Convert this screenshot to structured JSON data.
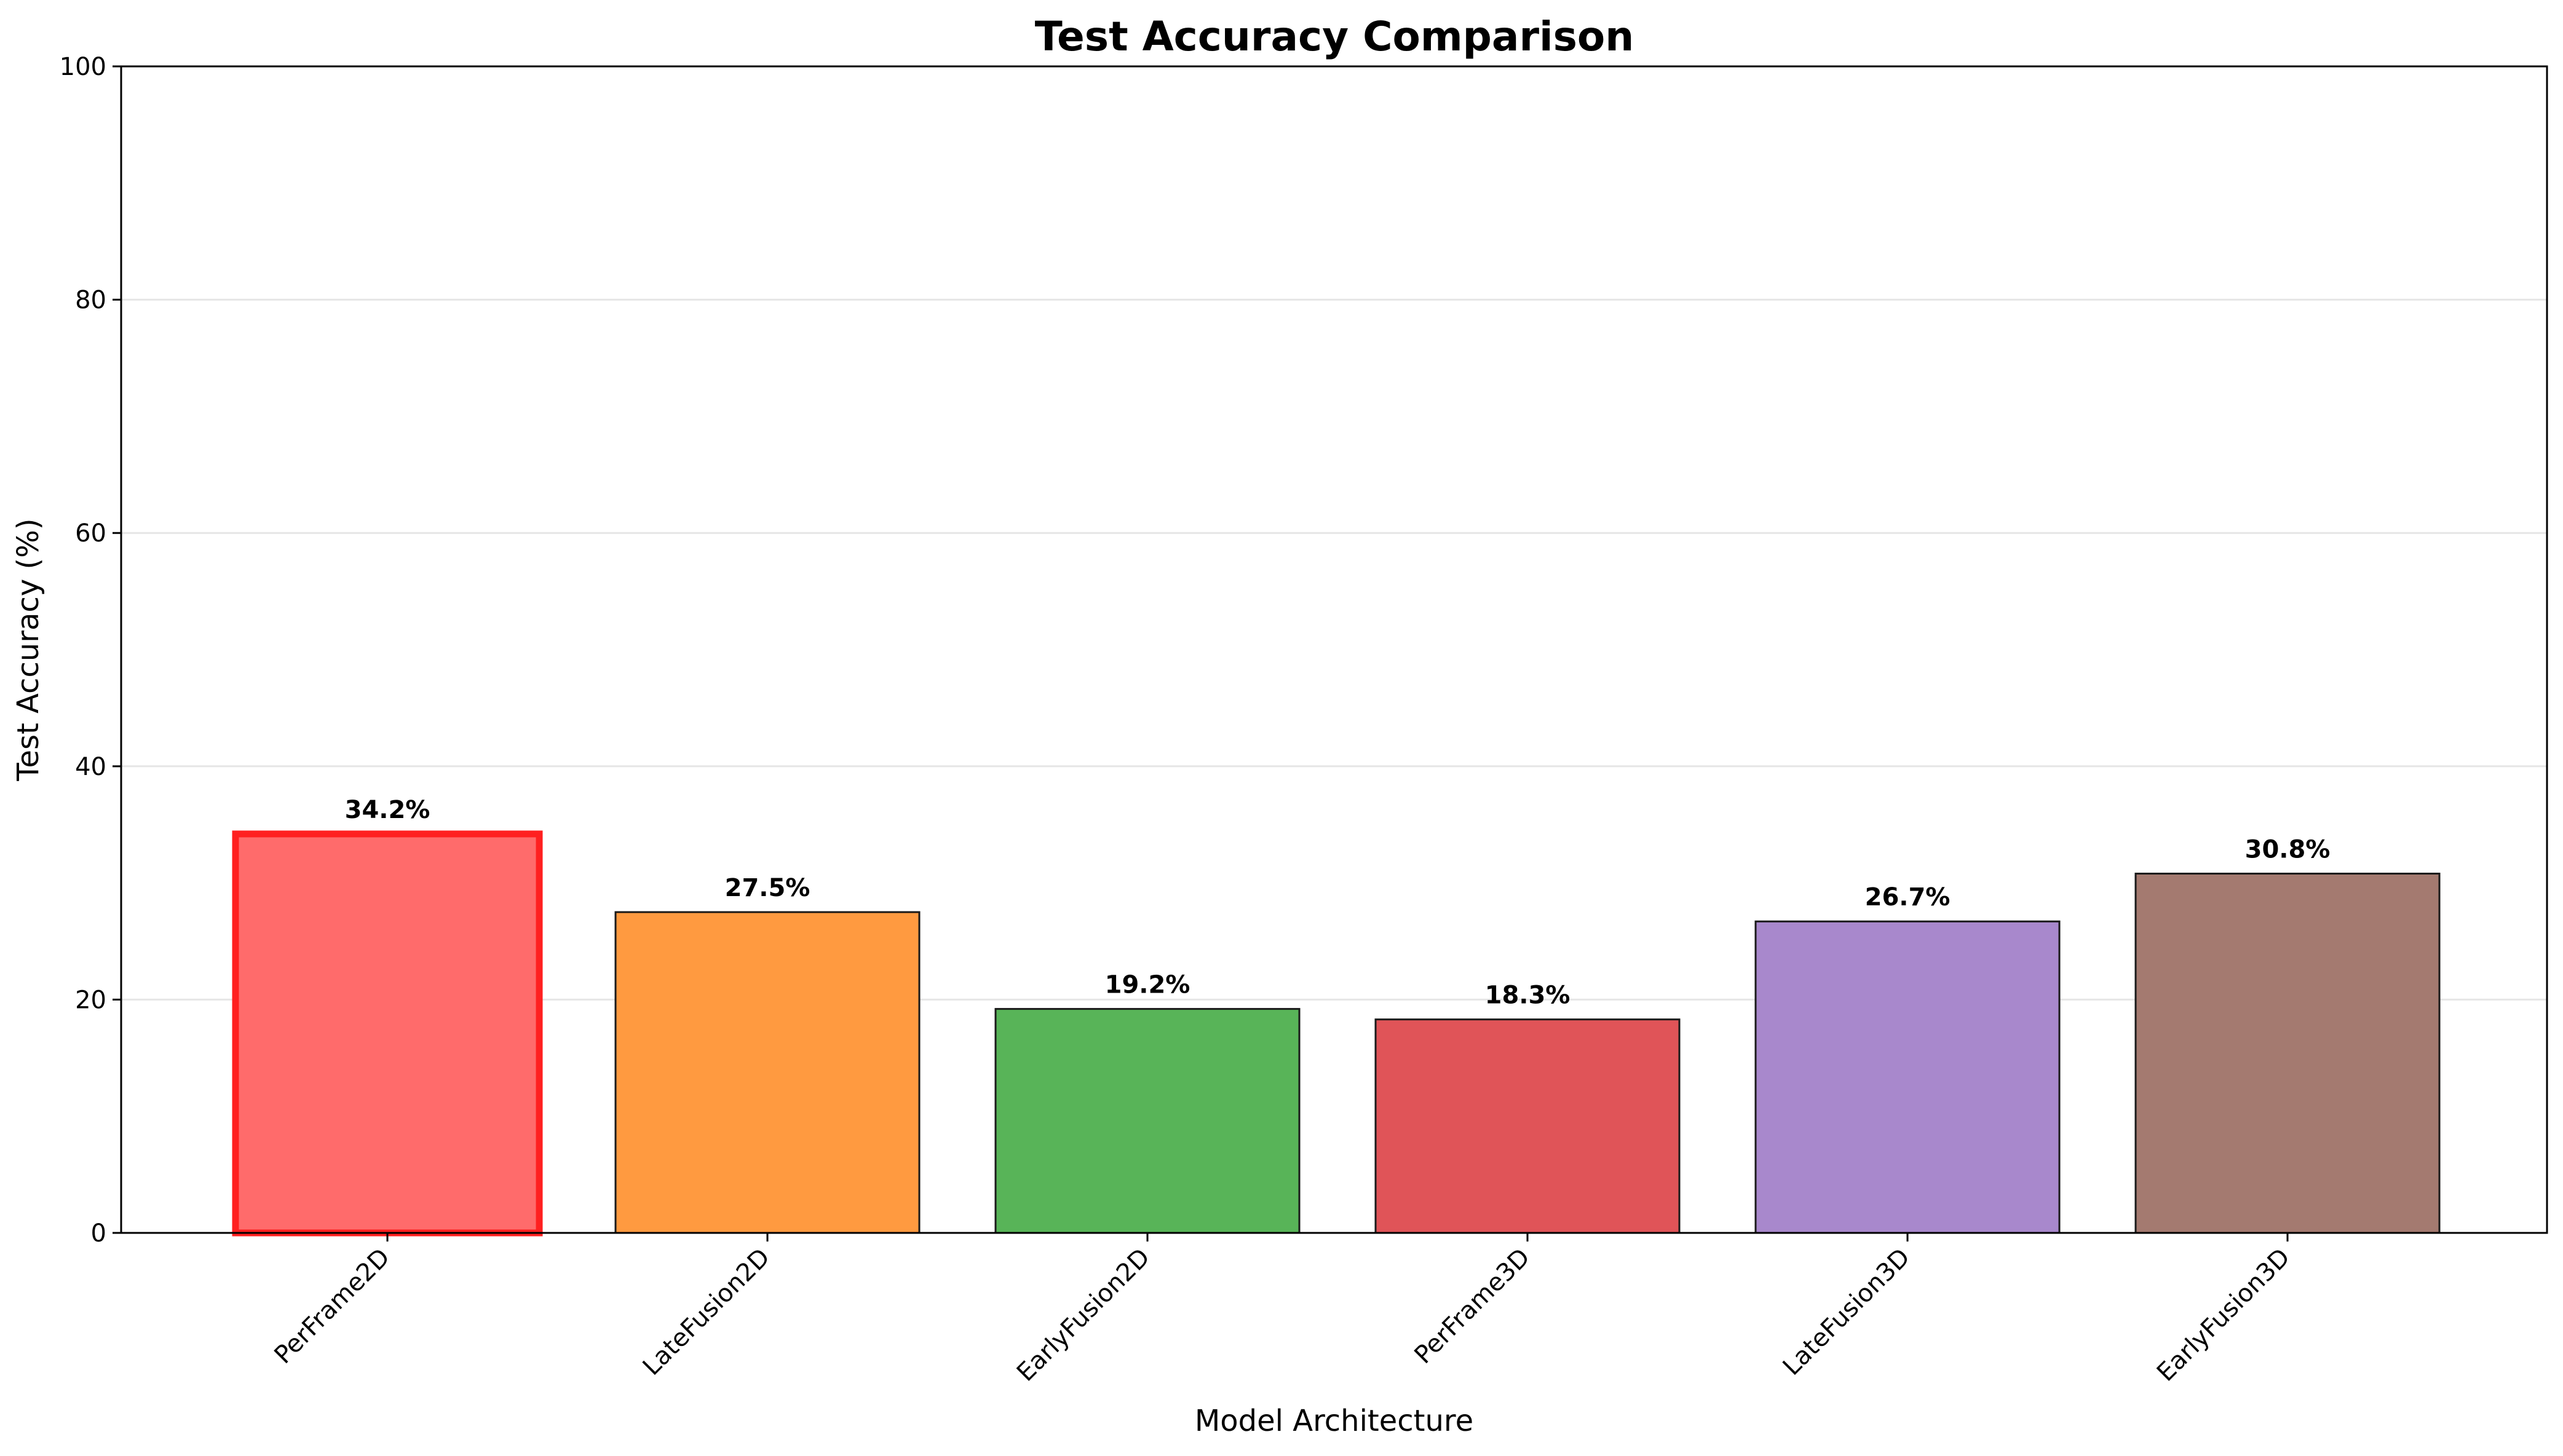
{
  "chart_data": {
    "type": "bar",
    "title": "Test Accuracy Comparison",
    "xlabel": "Model Architecture",
    "ylabel": "Test Accuracy (%)",
    "ylim": [
      0,
      100
    ],
    "yticks": [
      0,
      20,
      40,
      60,
      80,
      100
    ],
    "grid": "y",
    "categories": [
      "PerFrame2D",
      "LateFusion2D",
      "EarlyFusion2D",
      "PerFrame3D",
      "LateFusion3D",
      "EarlyFusion3D"
    ],
    "values": [
      34.2,
      27.5,
      19.2,
      18.3,
      26.7,
      30.8
    ],
    "value_labels": [
      "34.2%",
      "27.5%",
      "19.2%",
      "18.3%",
      "26.7%",
      "30.8%"
    ],
    "colors": [
      "#ff6b6b",
      "#ff9a40",
      "#58b458",
      "#e05458",
      "#a888cc",
      "#a47a70"
    ],
    "highlight": {
      "category": "PerFrame2D",
      "edge_color": "#ff2020"
    },
    "edge_color": "#1a1a1a"
  }
}
